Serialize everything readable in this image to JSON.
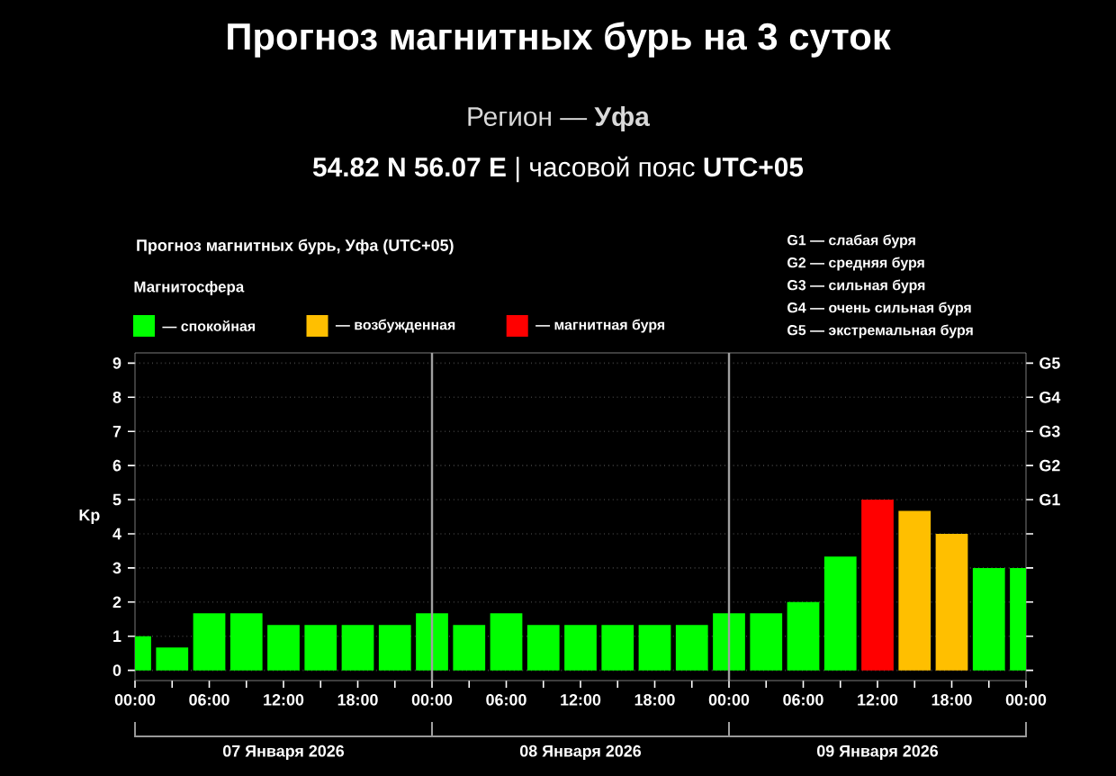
{
  "chart_data": {
    "type": "bar",
    "title": "Прогноз магнитных бурь на 3 суток",
    "subtitle": "Регион — **Уфа**",
    "annotations": [
      "**54.82 N 56.07 E** | часовой пояс **UTC+05**",
      "Прогноз магнитных бурь, Уфа (UTC+05)",
      "G1 — слабая буря",
      "G2 — средняя буря",
      "G3 — сильная буря",
      "G4 — очень сильная буря",
      "G5 — экстремальная буря",
      "07 Января 2026",
      "08 Января 2026",
      "09 Января 2026",
      "G1",
      "G2",
      "G3",
      "G4",
      "G5"
    ],
    "ylabel": "Kp",
    "legend_title": "Магнитосфера",
    "legend": "top left",
    "x": [
      "2026-01-07T00:00",
      "2026-01-07T03:00",
      "2026-01-07T06:00",
      "2026-01-07T09:00",
      "2026-01-07T12:00",
      "2026-01-07T15:00",
      "2026-01-07T18:00",
      "2026-01-07T21:00",
      "2026-01-08T00:00",
      "2026-01-08T03:00",
      "2026-01-08T06:00",
      "2026-01-08T09:00",
      "2026-01-08T12:00",
      "2026-01-08T15:00",
      "2026-01-08T18:00",
      "2026-01-08T21:00",
      "2026-01-09T00:00",
      "2026-01-09T03:00",
      "2026-01-09T06:00",
      "2026-01-09T09:00",
      "2026-01-09T12:00",
      "2026-01-09T15:00",
      "2026-01-09T18:00",
      "2026-01-09T21:00",
      "2026-01-10T00:00"
    ],
    "series": [
      {
        "name": "— спокойная",
        "color": "#00ff00",
        "values": [
          1,
          0.67,
          1.67,
          1.67,
          1.33,
          1.33,
          1.33,
          1.33,
          1.67,
          1.33,
          1.67,
          1.33,
          1.33,
          1.33,
          1.33,
          1.33,
          1.67,
          1.67,
          2,
          3.33,
          null,
          null,
          null,
          3,
          3
        ]
      },
      {
        "name": "— возбужденная",
        "color": "#ffbf00",
        "values": [
          null,
          null,
          null,
          null,
          null,
          null,
          null,
          null,
          null,
          null,
          null,
          null,
          null,
          null,
          null,
          null,
          null,
          null,
          null,
          null,
          null,
          4.67,
          4,
          null,
          null
        ]
      },
      {
        "name": "— магнитная буря",
        "color": "#ff0000",
        "values": [
          null,
          null,
          null,
          null,
          null,
          null,
          null,
          null,
          null,
          null,
          null,
          null,
          null,
          null,
          null,
          null,
          null,
          null,
          null,
          null,
          5,
          null,
          null,
          null,
          null
        ]
      }
    ],
    "xlim": [
      "2026-01-07T00:00",
      "2026-01-10T00:00"
    ],
    "xticks": [
      {
        "value": "2026-01-07T00:00",
        "label": "00:00"
      },
      {
        "value": "2026-01-07T03:00",
        "label": null
      },
      {
        "value": "2026-01-07T06:00",
        "label": "06:00"
      },
      {
        "value": "2026-01-07T09:00",
        "label": null
      },
      {
        "value": "2026-01-07T12:00",
        "label": "12:00"
      },
      {
        "value": "2026-01-07T15:00",
        "label": null
      },
      {
        "value": "2026-01-07T18:00",
        "label": "18:00"
      },
      {
        "value": "2026-01-07T21:00",
        "label": null
      },
      {
        "value": "2026-01-08T00:00",
        "label": "00:00"
      },
      {
        "value": "2026-01-08T03:00",
        "label": null
      },
      {
        "value": "2026-01-08T06:00",
        "label": "06:00"
      },
      {
        "value": "2026-01-08T09:00",
        "label": null
      },
      {
        "value": "2026-01-08T12:00",
        "label": "12:00"
      },
      {
        "value": "2026-01-08T15:00",
        "label": null
      },
      {
        "value": "2026-01-08T18:00",
        "label": "18:00"
      },
      {
        "value": "2026-01-08T21:00",
        "label": null
      },
      {
        "value": "2026-01-09T00:00",
        "label": "00:00"
      },
      {
        "value": "2026-01-09T03:00",
        "label": null
      },
      {
        "value": "2026-01-09T06:00",
        "label": "06:00"
      },
      {
        "value": "2026-01-09T09:00",
        "label": null
      },
      {
        "value": "2026-01-09T12:00",
        "label": "12:00"
      },
      {
        "value": "2026-01-09T15:00",
        "label": null
      },
      {
        "value": "2026-01-09T18:00",
        "label": "18:00"
      },
      {
        "value": "2026-01-09T21:00",
        "label": null
      },
      {
        "value": "2026-01-10T00:00",
        "label": "00:00"
      }
    ],
    "ylim": [
      -0.3,
      9.3
    ],
    "yticks": [
      0,
      1,
      2,
      3,
      4,
      5,
      6,
      7,
      8,
      9
    ],
    "grid": "y",
    "ref_lines": [
      {
        "axis": "x",
        "value": "2026-01-08T00:00",
        "color": "#a0a0a0"
      },
      {
        "axis": "x",
        "value": "2026-01-09T00:00",
        "color": "#a0a0a0"
      }
    ]
  }
}
